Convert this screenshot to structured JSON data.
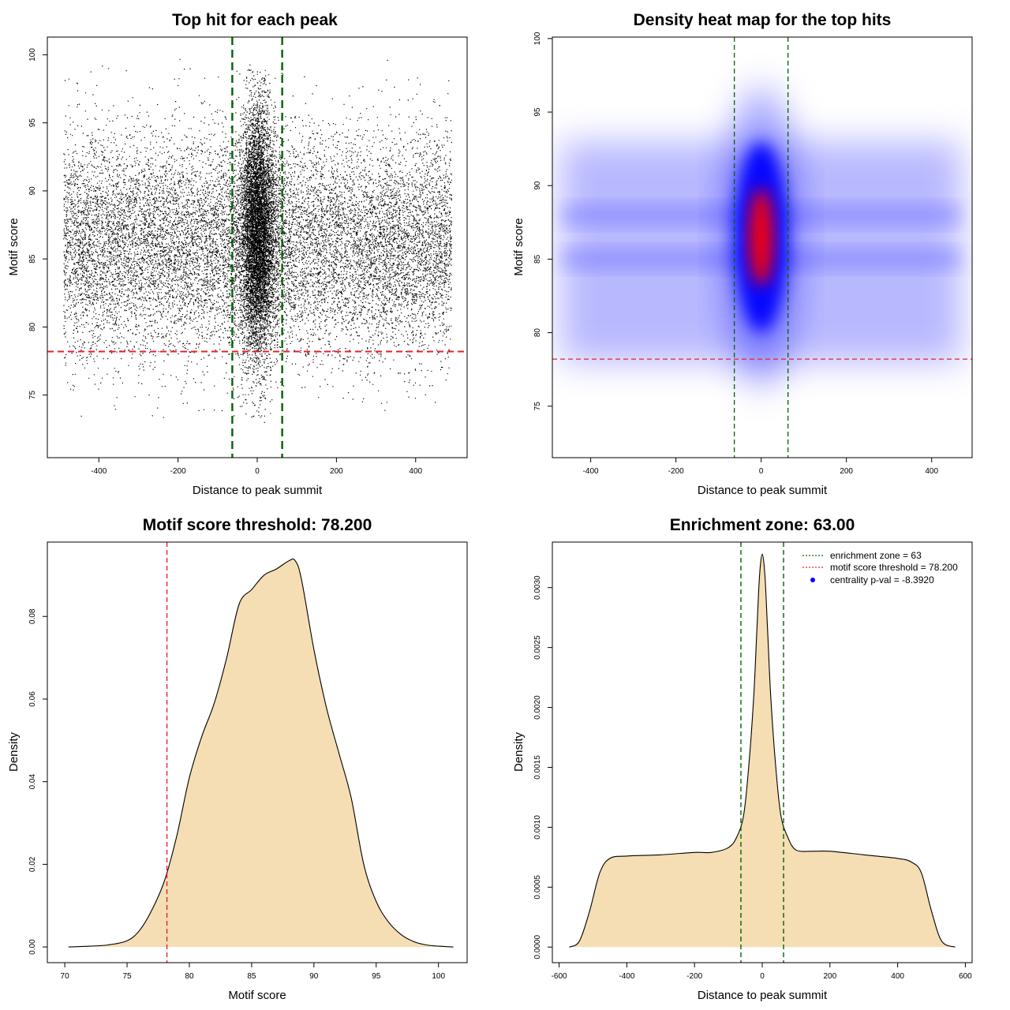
{
  "chart_data": [
    {
      "id": "scatter",
      "type": "scatter",
      "title": "Top hit for each peak",
      "xlabel": "Distance to peak summit",
      "ylabel": "Motif score",
      "xlim": [
        -530,
        530
      ],
      "ylim": [
        70.4,
        101.3
      ],
      "xticks": [
        -400,
        -200,
        0,
        200,
        400
      ],
      "yticks": [
        75,
        80,
        85,
        90,
        95,
        100
      ],
      "xtick_labels": [
        "-400",
        "-200",
        "0",
        "200",
        "400"
      ],
      "ytick_labels": [
        "75",
        "80",
        "85",
        "90",
        "95",
        "100"
      ],
      "vlines": [
        -63,
        63
      ],
      "vline_color": "#006400",
      "hline": 78.2,
      "hline_color": "#e8202a",
      "point_color": "#000000",
      "background_points": {
        "x_range": [
          -490,
          490
        ],
        "y_mean": 86,
        "y_sd": 4,
        "y_range": [
          71.5,
          100
        ]
      },
      "central_cluster": {
        "x_center": 0,
        "x_sd": 22,
        "y_mean": 87,
        "y_sd": 4.5
      }
    },
    {
      "id": "heatmap",
      "type": "heatmap",
      "title": "Density heat map for the top hits",
      "xlabel": "Distance to peak summit",
      "ylabel": "Motif score",
      "xlim": [
        -490,
        495
      ],
      "ylim": [
        71.5,
        100.1
      ],
      "xticks": [
        -400,
        -200,
        0,
        200,
        400
      ],
      "yticks": [
        75,
        80,
        85,
        90,
        95,
        100
      ],
      "xtick_labels": [
        "-400",
        "-200",
        "0",
        "200",
        "400"
      ],
      "ytick_labels": [
        "75",
        "80",
        "85",
        "90",
        "95",
        "100"
      ],
      "vlines": [
        -63,
        63
      ],
      "vline_color": "#006400",
      "hline": 78.2,
      "hline_color": "#e8202a",
      "colors": {
        "low": "#ffffff",
        "mid": "#0000ff",
        "high": "#ff0000"
      },
      "hotspot": {
        "x": 0,
        "y": 86.5
      }
    },
    {
      "id": "score_density",
      "type": "area",
      "title": "Motif score threshold: 78.200",
      "xlabel": "Motif score",
      "ylabel": "Density",
      "xlim": [
        68.6,
        102.3
      ],
      "ylim": [
        -0.0038,
        0.098
      ],
      "xticks": [
        70,
        75,
        80,
        85,
        90,
        95,
        100
      ],
      "yticks": [
        0,
        0.02,
        0.04,
        0.06,
        0.08
      ],
      "xtick_labels": [
        "70",
        "75",
        "80",
        "85",
        "90",
        "95",
        "100"
      ],
      "ytick_labels": [
        "0.00",
        "0.02",
        "0.04",
        "0.06",
        "0.08"
      ],
      "fill": "#f5deb3",
      "vline": 78.2,
      "vline_color": "#e8202a",
      "x": [
        70.3,
        72,
        73.5,
        75,
        76,
        77,
        78,
        79,
        80,
        81,
        82,
        83,
        84,
        85,
        86,
        87,
        88,
        88.5,
        89,
        90,
        91,
        92,
        93,
        94,
        95,
        96,
        97,
        98,
        99,
        100,
        101.2
      ],
      "y": [
        0,
        0.0002,
        0.0005,
        0.0015,
        0.004,
        0.009,
        0.016,
        0.027,
        0.041,
        0.051,
        0.059,
        0.07,
        0.083,
        0.0865,
        0.09,
        0.0915,
        0.0935,
        0.0935,
        0.089,
        0.072,
        0.058,
        0.047,
        0.036,
        0.02,
        0.011,
        0.006,
        0.003,
        0.0013,
        0.0005,
        0.0002,
        0
      ]
    },
    {
      "id": "distance_density",
      "type": "area",
      "title": "Enrichment zone: 63.00",
      "xlabel": "Distance to peak summit",
      "ylabel": "Density",
      "xlim": [
        -620,
        620
      ],
      "ylim": [
        -0.00013,
        0.00338
      ],
      "xticks": [
        -600,
        -400,
        -200,
        0,
        200,
        400,
        600
      ],
      "yticks": [
        0,
        0.0005,
        0.001,
        0.0015,
        0.002,
        0.0025,
        0.003
      ],
      "xtick_labels": [
        "-600",
        "-400",
        "-200",
        "0",
        "200",
        "400",
        "600"
      ],
      "ytick_labels": [
        "0.0000",
        "0.0005",
        "0.0010",
        "0.0015",
        "0.0020",
        "0.0025",
        "0.0030"
      ],
      "fill": "#f5deb3",
      "vlines": [
        -63,
        63
      ],
      "vline_color": "#006400",
      "x": [
        -570,
        -540,
        -510,
        -480,
        -450,
        -400,
        -300,
        -200,
        -150,
        -100,
        -75,
        -55,
        -40,
        -25,
        -15,
        -8,
        0,
        8,
        15,
        25,
        40,
        55,
        75,
        100,
        150,
        200,
        300,
        400,
        440,
        470,
        500,
        530,
        570
      ],
      "y": [
        0,
        5e-05,
        0.0003,
        0.00062,
        0.00074,
        0.00076,
        0.00077,
        0.00079,
        0.00079,
        0.00083,
        0.00092,
        0.0011,
        0.0015,
        0.0021,
        0.0027,
        0.0031,
        0.00328,
        0.0031,
        0.0027,
        0.0021,
        0.0015,
        0.0011,
        0.00092,
        0.00081,
        0.0008,
        0.0008,
        0.00077,
        0.00074,
        0.00071,
        0.00062,
        0.0003,
        5e-05,
        0
      ],
      "legend": {
        "placement": "top-right",
        "entries": [
          {
            "label": "enrichment zone = 63",
            "style": "dotted-line",
            "color": "#006400"
          },
          {
            "label": "motif score threshold = 78.200",
            "style": "dotted-line",
            "color": "#e8202a"
          },
          {
            "label": "centrality p-val = -8.3920",
            "style": "point",
            "color": "#0000ff"
          }
        ]
      }
    }
  ]
}
